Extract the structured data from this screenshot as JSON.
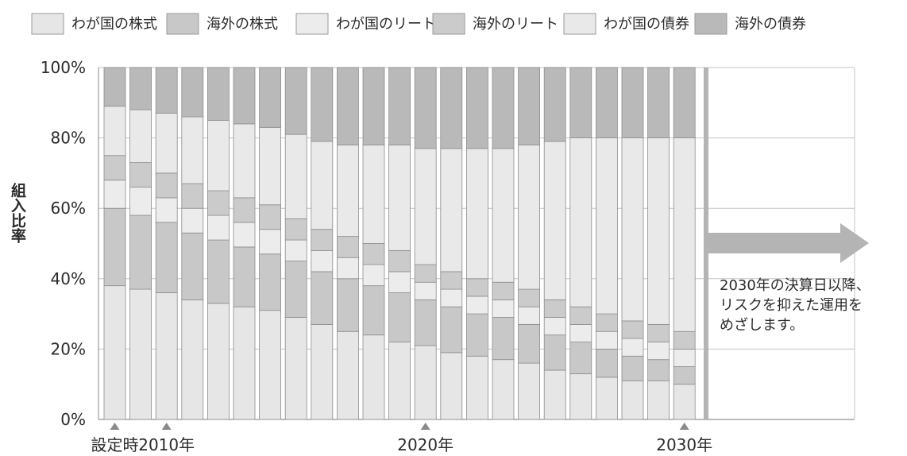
{
  "chart_data": {
    "type": "bar",
    "stacked": true,
    "ylabel": "組入比率",
    "ylim": [
      0,
      100
    ],
    "y_ticks": [
      "0%",
      "20%",
      "40%",
      "60%",
      "80%",
      "100%"
    ],
    "grid": true,
    "legend_position": "top",
    "x_tick_labels": [
      {
        "label": "設定時",
        "bar_index": 0
      },
      {
        "label": "2010年",
        "bar_index": 2
      },
      {
        "label": "2020年",
        "bar_index": 12
      },
      {
        "label": "2030年",
        "bar_index": 22
      }
    ],
    "series": [
      {
        "name": "わが国の株式",
        "color": "#e6e6e6",
        "values": [
          38,
          37,
          36,
          34,
          33,
          32,
          31,
          29,
          27,
          25,
          24,
          22,
          21,
          19,
          18,
          17,
          16,
          14,
          13,
          12,
          11,
          11,
          10
        ]
      },
      {
        "name": "海外の株式",
        "color": "#c8c8c8",
        "values": [
          22,
          21,
          20,
          19,
          18,
          17,
          16,
          16,
          15,
          15,
          14,
          14,
          13,
          13,
          12,
          12,
          11,
          10,
          9,
          8,
          7,
          6,
          5
        ]
      },
      {
        "name": "わが国のリート",
        "color": "#ececec",
        "values": [
          8,
          8,
          7,
          7,
          7,
          7,
          7,
          6,
          6,
          6,
          6,
          6,
          5,
          5,
          5,
          5,
          5,
          5,
          5,
          5,
          5,
          5,
          5
        ]
      },
      {
        "name": "海外のリート",
        "color": "#cbcbcb",
        "values": [
          7,
          7,
          7,
          7,
          7,
          7,
          7,
          6,
          6,
          6,
          6,
          6,
          5,
          5,
          5,
          5,
          5,
          5,
          5,
          5,
          5,
          5,
          5
        ]
      },
      {
        "name": "わが国の債券",
        "color": "#e9e9e9",
        "values": [
          14,
          15,
          17,
          19,
          20,
          21,
          22,
          24,
          25,
          26,
          28,
          30,
          33,
          35,
          37,
          38,
          41,
          45,
          48,
          50,
          52,
          53,
          55
        ]
      },
      {
        "name": "海外の債券",
        "color": "#b9b9b9",
        "values": [
          11,
          12,
          13,
          14,
          15,
          16,
          17,
          19,
          21,
          22,
          22,
          22,
          23,
          23,
          23,
          23,
          22,
          21,
          20,
          20,
          20,
          20,
          20
        ]
      }
    ],
    "annotation": {
      "lines": [
        "2030年の決算日以降、",
        "リスクを抑えた運用を",
        "めざします。"
      ]
    }
  }
}
